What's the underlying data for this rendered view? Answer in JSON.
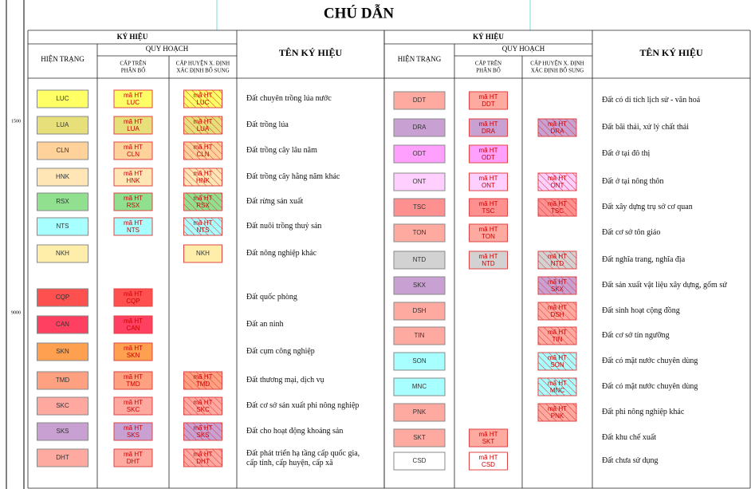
{
  "title": "CHÚ DẪN",
  "margin_labels": [
    "1500",
    "9000"
  ],
  "headers": {
    "symbol": "KÝ HIỆU",
    "current": "HIỆN TRẠNG",
    "planning": "QUY HOẠCH",
    "upper": [
      "CẤP TRÊN",
      "PHÂN BỔ"
    ],
    "district": [
      "CẤP HUYỆN X. ĐỊNH",
      "XÁC ĐỊNH BỔ SUNG"
    ],
    "name": "TÊN KÝ HIỆU"
  },
  "plan_label": "mã HT",
  "left": [
    {
      "code": "LUC",
      "color": "#ffff66",
      "upper": true,
      "district": "hatch",
      "name": "Đất chuyên trồng lúa nước"
    },
    {
      "code": "LUA",
      "color": "#e6df7a",
      "upper": true,
      "district": "hatch",
      "name": "Đất trồng lúa"
    },
    {
      "code": "CLN",
      "color": "#ffd29c",
      "upper": true,
      "district": "hatch",
      "name": "Đất trồng cây lâu năm"
    },
    {
      "code": "HNK",
      "color": "#ffe6b4",
      "upper": true,
      "district": "hatch",
      "name": "Đất trồng cây hằng năm khác"
    },
    {
      "code": "RSX",
      "color": "#90e090",
      "upper": true,
      "district": "hatch",
      "name": "Đất rừng sản xuất"
    },
    {
      "code": "NTS",
      "color": "#a8ffff",
      "upper": true,
      "district": "hatch",
      "name": "Đất nuôi trồng thuỷ sản"
    },
    {
      "code": "NKH",
      "color": "#ffeeaa",
      "upper": false,
      "district": "code",
      "name": "Đất nông nghiệp khác"
    },
    {
      "code": "CQP",
      "color": "#ff5050",
      "upper": true,
      "district": "none",
      "name": "Đất quốc phòng"
    },
    {
      "code": "CAN",
      "color": "#ff4060",
      "upper": true,
      "district": "none",
      "name": "Đất an ninh"
    },
    {
      "code": "SKN",
      "color": "#ffa050",
      "upper": true,
      "district": "none",
      "name": "Đất cụm công nghiệp"
    },
    {
      "code": "TMD",
      "color": "#ffa080",
      "upper": true,
      "district": "hatch",
      "name": "Đất thương mại, dịch vụ"
    },
    {
      "code": "SKC",
      "color": "#ffa8a0",
      "upper": true,
      "district": "hatch",
      "name": "Đất cơ sở sản xuất phi nông nghiệp"
    },
    {
      "code": "SKS",
      "color": "#c8a0d2",
      "upper": true,
      "district": "hatch",
      "name": "Đất cho hoạt động khoáng sản"
    },
    {
      "code": "DHT",
      "color": "#ffaaa0",
      "upper": true,
      "district": "hatch",
      "name": "Đất phát triển hạ tầng cấp quốc gia,|cấp tỉnh, cấp huyện, cấp xã"
    }
  ],
  "right": [
    {
      "code": "DDT",
      "color": "#ffaaa0",
      "upper": true,
      "district": "none",
      "name": "Đất có di tích lịch sử - văn hoá"
    },
    {
      "code": "DRA",
      "color": "#c8a0d2",
      "upper": true,
      "district": "hatch",
      "name": "Đất bãi thải, xử lý chất thải"
    },
    {
      "code": "ODT",
      "color": "#ffa0ff",
      "upper": true,
      "district": "none",
      "name": "Đất ở tại đô thị"
    },
    {
      "code": "ONT",
      "color": "#ffd0ff",
      "upper": true,
      "district": "hatch",
      "name": "Đất ở tại nông thôn"
    },
    {
      "code": "TSC",
      "color": "#ff9090",
      "upper": true,
      "district": "hatch",
      "name": "Đất xây dựng trụ sở cơ quan"
    },
    {
      "code": "TON",
      "color": "#ffaaa0",
      "upper": true,
      "district": "none",
      "name": "Đất cơ sở tôn giáo"
    },
    {
      "code": "NTD",
      "color": "#d2d2d2",
      "upper": true,
      "district": "hatch",
      "name": "Đất nghĩa trang, nghĩa địa"
    },
    {
      "code": "SKX",
      "color": "#c8a0d2",
      "upper": false,
      "district": "hatch",
      "name": "Đất sản xuất vật liệu xây dựng, gốm sứ"
    },
    {
      "code": "DSH",
      "color": "#ffaaa0",
      "upper": false,
      "district": "hatch",
      "name": "Đất sinh hoạt cộng đồng"
    },
    {
      "code": "TIN",
      "color": "#ffaaa0",
      "upper": false,
      "district": "hatch",
      "name": "Đất cơ sở tín ngưỡng"
    },
    {
      "code": "SON",
      "color": "#a8ffff",
      "upper": false,
      "district": "hatch",
      "name": "Đất có mặt nước chuyên dùng"
    },
    {
      "code": "MNC",
      "color": "#a8ffff",
      "upper": false,
      "district": "hatch",
      "name": "Đất có mặt nước chuyên dùng"
    },
    {
      "code": "PNK",
      "color": "#ffaaa0",
      "upper": false,
      "district": "hatch",
      "name": "Đất phi nông nghiệp khác"
    },
    {
      "code": "SKT",
      "color": "#ffaaa0",
      "upper": true,
      "district": "none",
      "name": "Đất khu chế xuất"
    },
    {
      "code": "CSD",
      "color": "#ffffff",
      "upper": true,
      "district": "none",
      "name": "Đất chưa sử dụng"
    }
  ]
}
